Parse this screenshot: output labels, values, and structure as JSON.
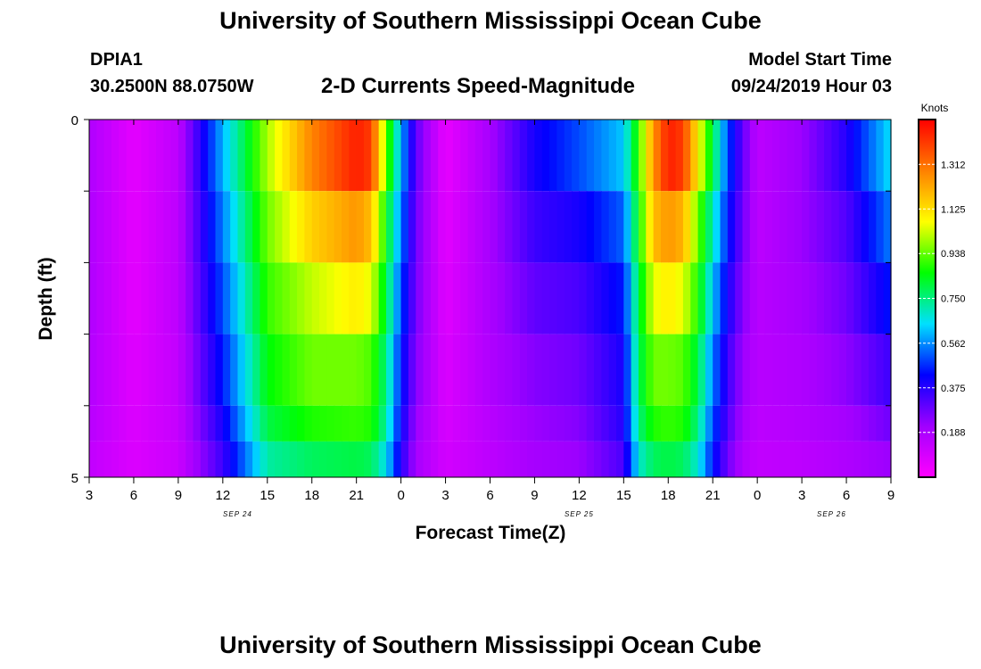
{
  "header": {
    "title": "University of Southern Mississippi Ocean Cube",
    "station_id": "DPIA1",
    "station_coords": "30.2500N 88.0750W",
    "subtitle": "2-D Currents Speed-Magnitude",
    "start_label": "Model Start Time",
    "start_value": "09/24/2019 Hour 03"
  },
  "footer": {
    "title": "University of Southern Mississippi Ocean Cube"
  },
  "chart_data": {
    "type": "heatmap",
    "title": "2-D Currents Speed-Magnitude",
    "xlabel": "Forecast Time(Z)",
    "ylabel": "Depth (ft)",
    "x_range": [
      0,
      54
    ],
    "y_range": [
      0,
      5
    ],
    "x_ticks": [
      {
        "t": 0,
        "label": "3"
      },
      {
        "t": 3,
        "label": "6"
      },
      {
        "t": 6,
        "label": "9"
      },
      {
        "t": 9,
        "label": "12"
      },
      {
        "t": 12,
        "label": "15"
      },
      {
        "t": 15,
        "label": "18"
      },
      {
        "t": 18,
        "label": "21"
      },
      {
        "t": 21,
        "label": "0"
      },
      {
        "t": 24,
        "label": "3"
      },
      {
        "t": 27,
        "label": "6"
      },
      {
        "t": 30,
        "label": "9"
      },
      {
        "t": 33,
        "label": "12"
      },
      {
        "t": 36,
        "label": "15"
      },
      {
        "t": 39,
        "label": "18"
      },
      {
        "t": 42,
        "label": "21"
      },
      {
        "t": 45,
        "label": "0"
      },
      {
        "t": 48,
        "label": "3"
      },
      {
        "t": 51,
        "label": "6"
      },
      {
        "t": 54,
        "label": "9"
      }
    ],
    "date_labels": [
      {
        "t": 10,
        "label": "SEP 24"
      },
      {
        "t": 33,
        "label": "SEP 25"
      },
      {
        "t": 50,
        "label": "SEP 26"
      }
    ],
    "y_tick_labels": [
      {
        "depth": 0,
        "label": "0"
      },
      {
        "depth": 5,
        "label": "5"
      }
    ],
    "depth_levels": [
      0,
      1,
      2,
      3,
      4,
      4.5
    ],
    "colorbar": {
      "unit": "Knots",
      "min": 0,
      "max": 1.5,
      "ticks": [
        "0.188",
        "0.375",
        "0.562",
        "0.750",
        "0.938",
        "1.125",
        "1.312"
      ],
      "colors": [
        "#ff00ff",
        "#a000ff",
        "#0000ff",
        "#00e0ff",
        "#00ff00",
        "#ffff00",
        "#ff8000",
        "#ff0000"
      ]
    },
    "x_grid": [
      0,
      3,
      6,
      9,
      12,
      15,
      18,
      19,
      20,
      21,
      22,
      24,
      27,
      30,
      33,
      36,
      37,
      38,
      39,
      40,
      41,
      42,
      43,
      44,
      45,
      48,
      51,
      54
    ],
    "rows": [
      [
        0.18,
        0.06,
        0.15,
        0.6,
        1.0,
        1.28,
        1.45,
        1.4,
        0.95,
        0.6,
        0.3,
        0.05,
        0.2,
        0.4,
        0.5,
        0.62,
        0.9,
        1.25,
        1.45,
        1.4,
        1.1,
        0.8,
        0.5,
        0.3,
        0.15,
        0.22,
        0.38,
        0.65
      ],
      [
        0.18,
        0.06,
        0.15,
        0.55,
        0.95,
        1.15,
        1.25,
        1.18,
        0.85,
        0.55,
        0.28,
        0.06,
        0.2,
        0.35,
        0.4,
        0.52,
        0.85,
        1.18,
        1.25,
        1.2,
        0.95,
        0.7,
        0.45,
        0.28,
        0.15,
        0.22,
        0.32,
        0.55
      ],
      [
        0.18,
        0.06,
        0.15,
        0.5,
        0.9,
        1.02,
        1.1,
        1.05,
        0.8,
        0.5,
        0.27,
        0.07,
        0.19,
        0.3,
        0.33,
        0.45,
        0.8,
        1.05,
        1.1,
        1.05,
        0.88,
        0.62,
        0.4,
        0.25,
        0.16,
        0.2,
        0.28,
        0.45
      ],
      [
        0.17,
        0.07,
        0.14,
        0.45,
        0.85,
        0.95,
        0.95,
        0.92,
        0.75,
        0.45,
        0.25,
        0.08,
        0.18,
        0.25,
        0.28,
        0.4,
        0.78,
        0.95,
        0.95,
        0.93,
        0.8,
        0.55,
        0.35,
        0.22,
        0.16,
        0.18,
        0.24,
        0.35
      ],
      [
        0.16,
        0.08,
        0.13,
        0.4,
        0.8,
        0.88,
        0.9,
        0.88,
        0.72,
        0.42,
        0.22,
        0.09,
        0.16,
        0.22,
        0.25,
        0.38,
        0.75,
        0.88,
        0.9,
        0.88,
        0.75,
        0.5,
        0.32,
        0.2,
        0.15,
        0.17,
        0.2,
        0.28
      ],
      [
        0.14,
        0.08,
        0.12,
        0.35,
        0.72,
        0.78,
        0.8,
        0.78,
        0.65,
        0.38,
        0.2,
        0.1,
        0.15,
        0.2,
        0.22,
        0.33,
        0.68,
        0.78,
        0.8,
        0.78,
        0.68,
        0.45,
        0.28,
        0.18,
        0.14,
        0.15,
        0.18,
        0.22
      ]
    ]
  }
}
